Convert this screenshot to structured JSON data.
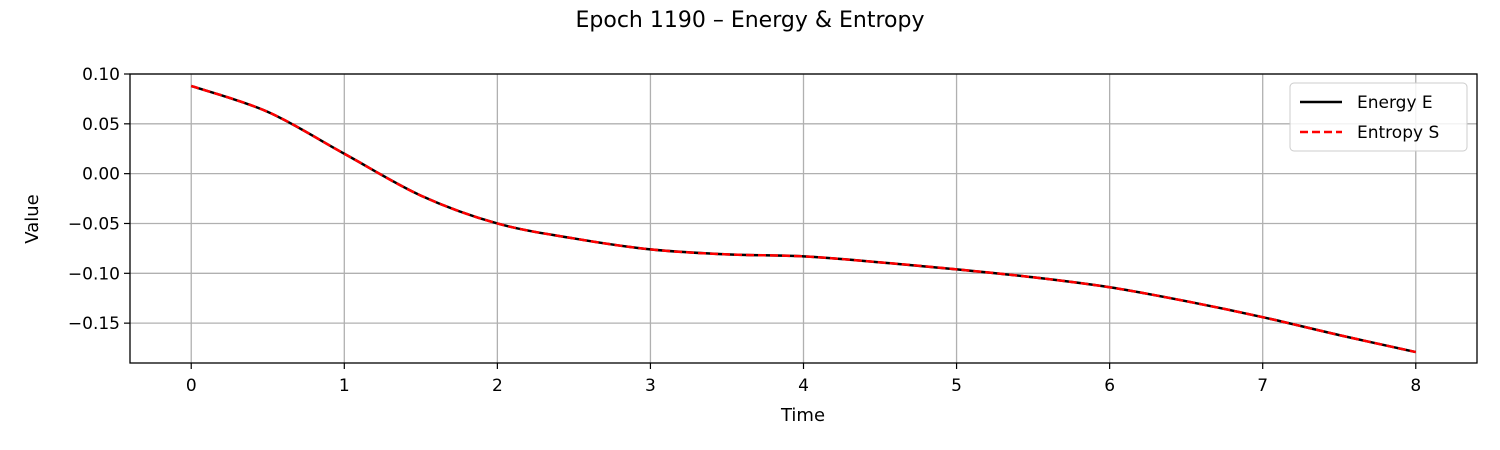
{
  "chart_data": {
    "type": "line",
    "title": "Epoch 1190 – Energy & Entropy",
    "xlabel": "Time",
    "ylabel": "Value",
    "xlim": [
      -0.4,
      8.4
    ],
    "ylim": [
      -0.19,
      0.1
    ],
    "xticks": [
      0,
      1,
      2,
      3,
      4,
      5,
      6,
      7,
      8
    ],
    "xtick_labels": [
      "0",
      "1",
      "2",
      "3",
      "4",
      "5",
      "6",
      "7",
      "8"
    ],
    "yticks": [
      0.1,
      0.05,
      0.0,
      -0.05,
      -0.1,
      -0.15
    ],
    "ytick_labels": [
      "0.10",
      "0.05",
      "0.00",
      "−0.05",
      "−0.10",
      "−0.15"
    ],
    "grid": true,
    "legend_position": "top-right",
    "x": [
      0,
      0.5,
      1,
      1.5,
      2,
      2.5,
      3,
      3.5,
      4,
      4.5,
      5,
      5.5,
      6,
      6.5,
      7,
      7.5,
      8
    ],
    "series": [
      {
        "name": "Energy E",
        "color": "#000000",
        "style": "solid",
        "values": [
          0.088,
          0.062,
          0.02,
          -0.022,
          -0.05,
          -0.065,
          -0.076,
          -0.081,
          -0.083,
          -0.089,
          -0.096,
          -0.104,
          -0.114,
          -0.128,
          -0.144,
          -0.162,
          -0.179
        ]
      },
      {
        "name": "Entropy S",
        "color": "#ff0000",
        "style": "dashed",
        "values": [
          0.088,
          0.062,
          0.02,
          -0.022,
          -0.05,
          -0.065,
          -0.076,
          -0.081,
          -0.083,
          -0.089,
          -0.096,
          -0.104,
          -0.114,
          -0.128,
          -0.144,
          -0.162,
          -0.179
        ]
      }
    ]
  }
}
